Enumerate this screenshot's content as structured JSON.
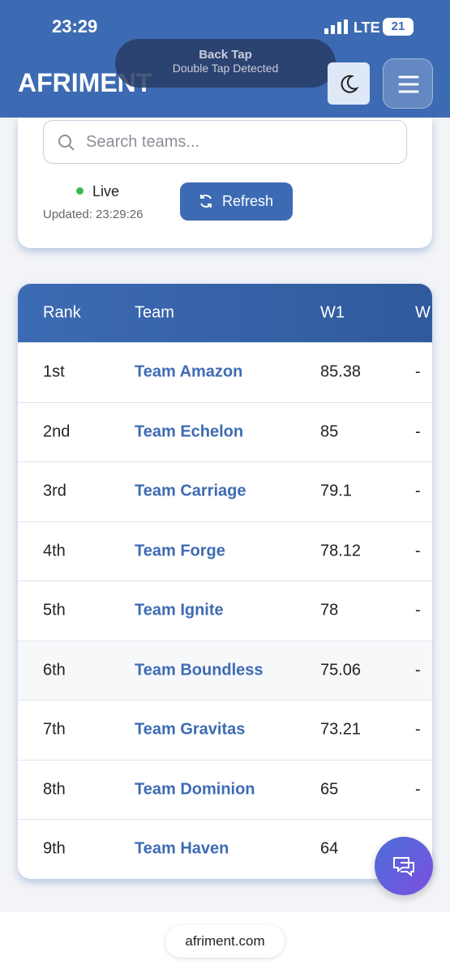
{
  "status_bar": {
    "time": "23:29",
    "network": "LTE",
    "battery": "21"
  },
  "toast": {
    "title": "Back Tap",
    "subtitle": "Double Tap Detected"
  },
  "header": {
    "logo": "AFRIMENT"
  },
  "controls": {
    "search_placeholder": "Search teams...",
    "status": "Live",
    "updated": "Updated: 23:29:26",
    "refresh": "Refresh"
  },
  "table": {
    "columns": [
      "Rank",
      "Team",
      "W1",
      "W"
    ],
    "rows": [
      [
        "1st",
        "Team Amazon",
        "85.38",
        "-"
      ],
      [
        "2nd",
        "Team Echelon",
        "85",
        "-"
      ],
      [
        "3rd",
        "Team Carriage",
        "79.1",
        "-"
      ],
      [
        "4th",
        "Team Forge",
        "78.12",
        "-"
      ],
      [
        "5th",
        "Team Ignite",
        "78",
        "-"
      ],
      [
        "6th",
        "Team Boundless",
        "75.06",
        "-"
      ],
      [
        "7th",
        "Team Gravitas",
        "73.21",
        "-"
      ],
      [
        "8th",
        "Team Dominion",
        "65",
        "-"
      ],
      [
        "9th",
        "Team Haven",
        "64",
        "-"
      ]
    ]
  },
  "footer": {
    "url": "afriment.com"
  }
}
